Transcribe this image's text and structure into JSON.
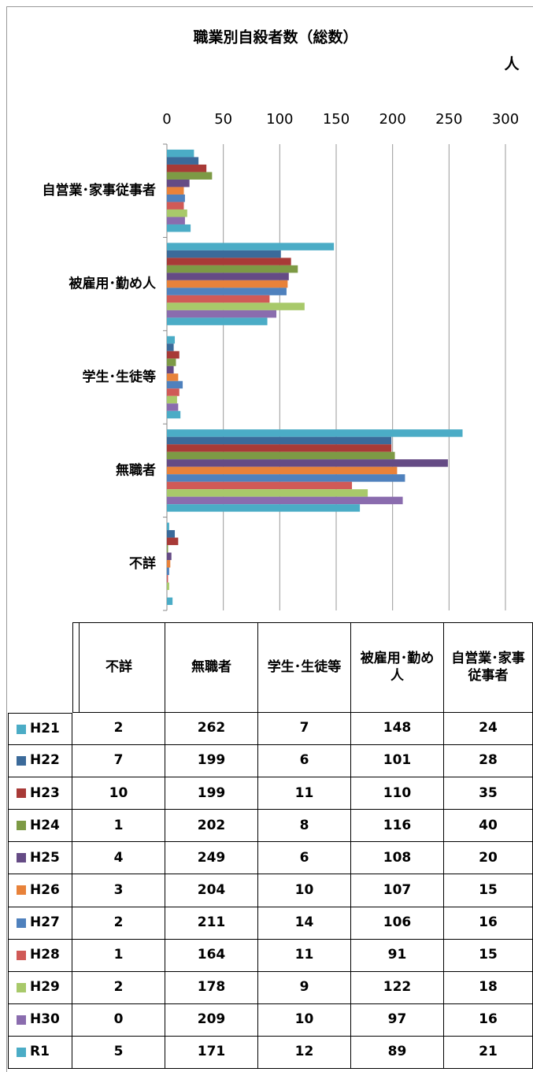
{
  "chart_data": {
    "type": "bar",
    "orientation": "horizontal",
    "title": "職業別自殺者数（総数）",
    "x_label": "人",
    "categories": [
      "自営業･家事従事者",
      "被雇用･勤め人",
      "学生･生徒等",
      "無職者",
      "不詳"
    ],
    "series": [
      {
        "name": "H21",
        "color": "#4bacc6",
        "values": [
          24,
          148,
          7,
          262,
          2
        ]
      },
      {
        "name": "H22",
        "color": "#3b6a9a",
        "values": [
          28,
          101,
          6,
          199,
          7
        ]
      },
      {
        "name": "H23",
        "color": "#a83a37",
        "values": [
          35,
          110,
          11,
          199,
          10
        ]
      },
      {
        "name": "H24",
        "color": "#7d9a45",
        "values": [
          40,
          116,
          8,
          202,
          1
        ]
      },
      {
        "name": "H25",
        "color": "#654b85",
        "values": [
          20,
          108,
          6,
          249,
          4
        ]
      },
      {
        "name": "H26",
        "color": "#e8823a",
        "values": [
          15,
          107,
          10,
          204,
          3
        ]
      },
      {
        "name": "H27",
        "color": "#4f81bd",
        "values": [
          16,
          106,
          14,
          211,
          2
        ]
      },
      {
        "name": "H28",
        "color": "#d05a57",
        "values": [
          15,
          91,
          11,
          164,
          1
        ]
      },
      {
        "name": "H29",
        "color": "#a8c96a",
        "values": [
          18,
          122,
          9,
          178,
          2
        ]
      },
      {
        "name": "H30",
        "color": "#8a6cae",
        "values": [
          16,
          97,
          10,
          209,
          0
        ]
      },
      {
        "name": "R1",
        "color": "#4bacc6",
        "values": [
          21,
          89,
          12,
          171,
          5
        ]
      }
    ],
    "xlim": [
      0,
      300
    ],
    "xticks": [
      0,
      50,
      100,
      150,
      200,
      250,
      300
    ],
    "grid": true
  }
}
